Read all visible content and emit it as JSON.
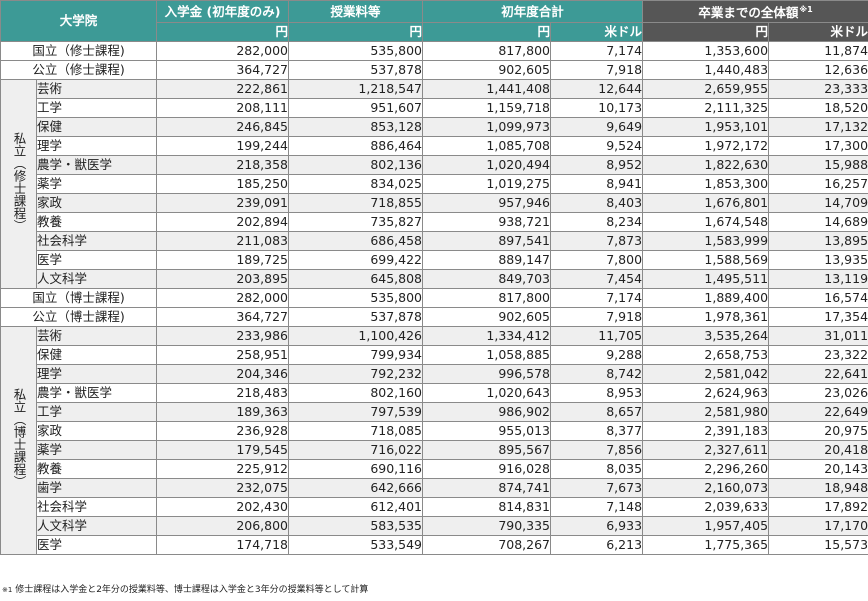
{
  "header": {
    "col_school": "大学院",
    "col_admission": "入学金 (初年度のみ)",
    "col_tuition": "授業料等",
    "col_first_year": "初年度合計",
    "col_total": "卒業までの全体額",
    "col_total_mark": "※1",
    "unit_yen": "円",
    "unit_usd": "米ドル"
  },
  "master": {
    "national": {
      "label": "国立（修士課程)",
      "values": [
        "282,000",
        "535,800",
        "817,800",
        "7,174",
        "1,353,600",
        "11,874"
      ]
    },
    "public": {
      "label": "公立（修士課程)",
      "values": [
        "364,727",
        "537,878",
        "902,605",
        "7,918",
        "1,440,483",
        "12,636"
      ]
    },
    "private_label": "私立（修士課程）",
    "private_rows": [
      {
        "label": "芸術",
        "values": [
          "222,861",
          "1,218,547",
          "1,441,408",
          "12,644",
          "2,659,955",
          "23,333"
        ]
      },
      {
        "label": "工学",
        "values": [
          "208,111",
          "951,607",
          "1,159,718",
          "10,173",
          "2,111,325",
          "18,520"
        ]
      },
      {
        "label": "保健",
        "values": [
          "246,845",
          "853,128",
          "1,099,973",
          "9,649",
          "1,953,101",
          "17,132"
        ]
      },
      {
        "label": "理学",
        "values": [
          "199,244",
          "886,464",
          "1,085,708",
          "9,524",
          "1,972,172",
          "17,300"
        ]
      },
      {
        "label": "農学・獣医学",
        "values": [
          "218,358",
          "802,136",
          "1,020,494",
          "8,952",
          "1,822,630",
          "15,988"
        ]
      },
      {
        "label": "薬学",
        "values": [
          "185,250",
          "834,025",
          "1,019,275",
          "8,941",
          "1,853,300",
          "16,257"
        ]
      },
      {
        "label": "家政",
        "values": [
          "239,091",
          "718,855",
          "957,946",
          "8,403",
          "1,676,801",
          "14,709"
        ]
      },
      {
        "label": "教養",
        "values": [
          "202,894",
          "735,827",
          "938,721",
          "8,234",
          "1,674,548",
          "14,689"
        ]
      },
      {
        "label": "社会科学",
        "values": [
          "211,083",
          "686,458",
          "897,541",
          "7,873",
          "1,583,999",
          "13,895"
        ]
      },
      {
        "label": "医学",
        "values": [
          "189,725",
          "699,422",
          "889,147",
          "7,800",
          "1,588,569",
          "13,935"
        ]
      },
      {
        "label": "人文科学",
        "values": [
          "203,895",
          "645,808",
          "849,703",
          "7,454",
          "1,495,511",
          "13,119"
        ]
      }
    ]
  },
  "doctor": {
    "national": {
      "label": "国立（博士課程)",
      "values": [
        "282,000",
        "535,800",
        "817,800",
        "7,174",
        "1,889,400",
        "16,574"
      ]
    },
    "public": {
      "label": "公立（博士課程)",
      "values": [
        "364,727",
        "537,878",
        "902,605",
        "7,918",
        "1,978,361",
        "17,354"
      ]
    },
    "private_label": "私立（博士課程）",
    "private_rows": [
      {
        "label": "芸術",
        "values": [
          "233,986",
          "1,100,426",
          "1,334,412",
          "11,705",
          "3,535,264",
          "31,011"
        ]
      },
      {
        "label": "保健",
        "values": [
          "258,951",
          "799,934",
          "1,058,885",
          "9,288",
          "2,658,753",
          "23,322"
        ]
      },
      {
        "label": "理学",
        "values": [
          "204,346",
          "792,232",
          "996,578",
          "8,742",
          "2,581,042",
          "22,641"
        ]
      },
      {
        "label": "農学・獣医学",
        "values": [
          "218,483",
          "802,160",
          "1,020,643",
          "8,953",
          "2,624,963",
          "23,026"
        ]
      },
      {
        "label": "工学",
        "values": [
          "189,363",
          "797,539",
          "986,902",
          "8,657",
          "2,581,980",
          "22,649"
        ]
      },
      {
        "label": "家政",
        "values": [
          "236,928",
          "718,085",
          "955,013",
          "8,377",
          "2,391,183",
          "20,975"
        ]
      },
      {
        "label": "薬学",
        "values": [
          "179,545",
          "716,022",
          "895,567",
          "7,856",
          "2,327,611",
          "20,418"
        ]
      },
      {
        "label": "教養",
        "values": [
          "225,912",
          "690,116",
          "916,028",
          "8,035",
          "2,296,260",
          "20,143"
        ]
      },
      {
        "label": "歯学",
        "values": [
          "232,075",
          "642,666",
          "874,741",
          "7,673",
          "2,160,073",
          "18,948"
        ]
      },
      {
        "label": "社会科学",
        "values": [
          "202,430",
          "612,401",
          "814,831",
          "7,148",
          "2,039,633",
          "17,892"
        ]
      },
      {
        "label": "人文科学",
        "values": [
          "206,800",
          "583,535",
          "790,335",
          "6,933",
          "1,957,405",
          "17,170"
        ]
      },
      {
        "label": "医学",
        "values": [
          "174,718",
          "533,549",
          "708,267",
          "6,213",
          "1,775,365",
          "15,573"
        ]
      }
    ]
  },
  "footnote": {
    "mark": "※1",
    "text": "修士課程は入学金と2年分の授業料等、博士課程は入学金と3年分の授業料等として計算"
  }
}
